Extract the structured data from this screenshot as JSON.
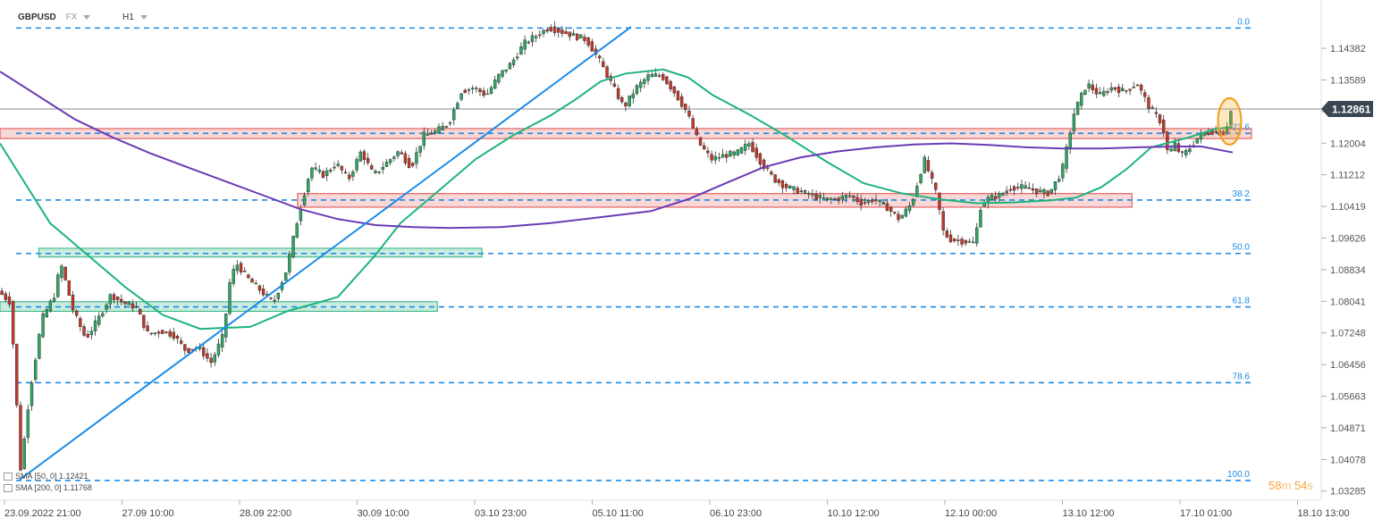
{
  "header": {
    "symbol": "GBPUSD",
    "market": "FX",
    "timeframe": "H1"
  },
  "countdown": {
    "minutes": "58",
    "m_unit": "m",
    "seconds": "54",
    "s_unit": "s"
  },
  "indicators": [
    {
      "label": "SMA [50, 0] 1.12421",
      "color": "#1db37c"
    },
    {
      "label": "SMA [200, 0] 1.11768",
      "color": "#6a3bb5"
    }
  ],
  "colors": {
    "up": "#2fa565",
    "down": "#c0392b",
    "fib": "#1a8ae6",
    "sma50": "#1db37c",
    "sma200": "#6a3bb5",
    "trendline": "#1a8ae6",
    "resistance": "#e04848",
    "support": "#2db37a",
    "price_tag": "#3a4653",
    "highlight": "#f39c12"
  },
  "chart_data": {
    "type": "candlestick",
    "symbol": "GBPUSD",
    "timeframe": "H1",
    "x_labels": [
      "23.09.2022  21:00",
      "27.09  10:00",
      "28.09  22:00",
      "30.09  10:00",
      "03.10  23:00",
      "05.10  11:00",
      "06.10  23:00",
      "10.10  12:00",
      "12.10  00:00",
      "13.10  12:00",
      "17.10  01:00",
      "18.10  13:00"
    ],
    "y_ticks": [
      "1.14382",
      "1.13589",
      "1.12796",
      "1.12004",
      "1.11212",
      "1.10419",
      "1.09626",
      "1.08834",
      "1.08041",
      "1.07248",
      "1.06456",
      "1.05663",
      "1.04871",
      "1.04078",
      "1.03285"
    ],
    "ylim": [
      1.031,
      1.151
    ],
    "current_price": "1.12861",
    "fibonacci": [
      {
        "label": "0.0",
        "price": 1.1489
      },
      {
        "label": "23.6",
        "price": 1.1225
      },
      {
        "label": "38.2",
        "price": 1.1058
      },
      {
        "label": "50.0",
        "price": 1.0924
      },
      {
        "label": "61.8",
        "price": 1.079
      },
      {
        "label": "78.6",
        "price": 1.06
      },
      {
        "label": "100.0",
        "price": 1.0355
      }
    ],
    "zones": [
      {
        "kind": "resistance",
        "x_from": 0,
        "x_to": 1,
        "price_low": 1.1212,
        "price_high": 1.1237
      },
      {
        "kind": "resistance",
        "x_from": 0.2378,
        "x_to": 0.9045,
        "price_low": 1.104,
        "price_high": 1.1074
      },
      {
        "kind": "support",
        "x_from": 0.031,
        "x_to": 0.3851,
        "price_low": 1.0915,
        "price_high": 1.0937
      },
      {
        "kind": "support",
        "x_from": 0,
        "x_to": 0.3495,
        "price_low": 1.0779,
        "price_high": 1.0803
      }
    ],
    "trendline": {
      "from": {
        "t": 0.0157,
        "price": 1.0357
      },
      "to": {
        "t": 0.5043,
        "price": 1.1492
      }
    },
    "series": [
      {
        "name": "SMA [50, 0] 1.12421",
        "points": [
          [
            0,
            1.12
          ],
          [
            0.04,
            1.1
          ],
          [
            0.07,
            1.092
          ],
          [
            0.1,
            1.084
          ],
          [
            0.13,
            1.077
          ],
          [
            0.16,
            1.0735
          ],
          [
            0.2,
            1.074
          ],
          [
            0.23,
            1.078
          ],
          [
            0.25,
            1.0797
          ],
          [
            0.27,
            1.0815
          ],
          [
            0.28,
            1.085
          ],
          [
            0.3,
            1.092
          ],
          [
            0.32,
            1.1
          ],
          [
            0.35,
            1.108
          ],
          [
            0.38,
            1.116
          ],
          [
            0.41,
            1.122
          ],
          [
            0.44,
            1.127
          ],
          [
            0.46,
            1.131
          ],
          [
            0.48,
            1.1355
          ],
          [
            0.5,
            1.1375
          ],
          [
            0.53,
            1.1385
          ],
          [
            0.55,
            1.1365
          ],
          [
            0.57,
            1.132
          ],
          [
            0.6,
            1.127
          ],
          [
            0.63,
            1.1215
          ],
          [
            0.66,
            1.1155
          ],
          [
            0.69,
            1.11
          ],
          [
            0.72,
            1.1075
          ],
          [
            0.75,
            1.106
          ],
          [
            0.78,
            1.105
          ],
          [
            0.81,
            1.1052
          ],
          [
            0.84,
            1.1057
          ],
          [
            0.86,
            1.1064
          ],
          [
            0.88,
            1.109
          ],
          [
            0.9,
            1.1135
          ],
          [
            0.92,
            1.119
          ],
          [
            0.95,
            1.1215
          ],
          [
            0.97,
            1.1235
          ],
          [
            0.985,
            1.1242
          ]
        ]
      },
      {
        "name": "SMA [200, 0] 1.11768",
        "points": [
          [
            0,
            1.138
          ],
          [
            0.03,
            1.132
          ],
          [
            0.06,
            1.126
          ],
          [
            0.09,
            1.1215
          ],
          [
            0.12,
            1.1175
          ],
          [
            0.15,
            1.114
          ],
          [
            0.18,
            1.1105
          ],
          [
            0.21,
            1.107
          ],
          [
            0.24,
            1.1035
          ],
          [
            0.27,
            1.101
          ],
          [
            0.3,
            1.0995
          ],
          [
            0.33,
            1.099
          ],
          [
            0.36,
            1.0988
          ],
          [
            0.4,
            1.099
          ],
          [
            0.44,
            1.1
          ],
          [
            0.48,
            1.1015
          ],
          [
            0.52,
            1.103
          ],
          [
            0.55,
            1.106
          ],
          [
            0.58,
            1.11
          ],
          [
            0.61,
            1.114
          ],
          [
            0.64,
            1.1165
          ],
          [
            0.67,
            1.118
          ],
          [
            0.7,
            1.119
          ],
          [
            0.73,
            1.1197
          ],
          [
            0.76,
            1.12
          ],
          [
            0.79,
            1.1196
          ],
          [
            0.82,
            1.119
          ],
          [
            0.85,
            1.1187
          ],
          [
            0.88,
            1.1187
          ],
          [
            0.91,
            1.119
          ],
          [
            0.94,
            1.1192
          ],
          [
            0.96,
            1.1192
          ],
          [
            0.985,
            1.1177
          ]
        ]
      }
    ],
    "candle_path": [
      [
        0,
        1.083
      ],
      [
        0.01,
        1.08
      ],
      [
        0.018,
        1.038
      ],
      [
        0.025,
        1.057
      ],
      [
        0.035,
        1.076
      ],
      [
        0.045,
        1.082
      ],
      [
        0.05,
        1.09
      ],
      [
        0.06,
        1.078
      ],
      [
        0.07,
        1.071
      ],
      [
        0.08,
        1.076
      ],
      [
        0.09,
        1.082
      ],
      [
        0.1,
        1.08
      ],
      [
        0.11,
        1.079
      ],
      [
        0.12,
        1.072
      ],
      [
        0.13,
        1.073
      ],
      [
        0.14,
        1.072
      ],
      [
        0.15,
        1.068
      ],
      [
        0.16,
        1.069
      ],
      [
        0.17,
        1.065
      ],
      [
        0.18,
        1.072
      ],
      [
        0.185,
        1.085
      ],
      [
        0.19,
        1.09
      ],
      [
        0.2,
        1.086
      ],
      [
        0.21,
        1.083
      ],
      [
        0.22,
        1.08
      ],
      [
        0.23,
        1.088
      ],
      [
        0.24,
        1.102
      ],
      [
        0.25,
        1.114
      ],
      [
        0.26,
        1.112
      ],
      [
        0.27,
        1.115
      ],
      [
        0.28,
        1.111
      ],
      [
        0.29,
        1.118
      ],
      [
        0.3,
        1.112
      ],
      [
        0.31,
        1.115
      ],
      [
        0.32,
        1.118
      ],
      [
        0.33,
        1.114
      ],
      [
        0.34,
        1.122
      ],
      [
        0.35,
        1.123
      ],
      [
        0.36,
        1.125
      ],
      [
        0.37,
        1.133
      ],
      [
        0.38,
        1.134
      ],
      [
        0.39,
        1.132
      ],
      [
        0.4,
        1.137
      ],
      [
        0.41,
        1.14
      ],
      [
        0.42,
        1.145
      ],
      [
        0.43,
        1.147
      ],
      [
        0.44,
        1.149
      ],
      [
        0.45,
        1.148
      ],
      [
        0.46,
        1.147
      ],
      [
        0.47,
        1.146
      ],
      [
        0.48,
        1.141
      ],
      [
        0.49,
        1.135
      ],
      [
        0.5,
        1.129
      ],
      [
        0.51,
        1.134
      ],
      [
        0.52,
        1.137
      ],
      [
        0.53,
        1.137
      ],
      [
        0.54,
        1.133
      ],
      [
        0.55,
        1.128
      ],
      [
        0.56,
        1.12
      ],
      [
        0.57,
        1.116
      ],
      [
        0.58,
        1.117
      ],
      [
        0.59,
        1.1175
      ],
      [
        0.6,
        1.12
      ],
      [
        0.61,
        1.115
      ],
      [
        0.62,
        1.111
      ],
      [
        0.63,
        1.109
      ],
      [
        0.64,
        1.108
      ],
      [
        0.65,
        1.107
      ],
      [
        0.66,
        1.106
      ],
      [
        0.67,
        1.106
      ],
      [
        0.68,
        1.107
      ],
      [
        0.69,
        1.105
      ],
      [
        0.7,
        1.106
      ],
      [
        0.71,
        1.104
      ],
      [
        0.72,
        1.101
      ],
      [
        0.73,
        1.105
      ],
      [
        0.74,
        1.116
      ],
      [
        0.75,
        1.107
      ],
      [
        0.755,
        1.098
      ],
      [
        0.76,
        1.096
      ],
      [
        0.77,
        1.0955
      ],
      [
        0.78,
        1.095
      ],
      [
        0.785,
        1.104
      ],
      [
        0.79,
        1.106
      ],
      [
        0.8,
        1.107
      ],
      [
        0.81,
        1.109
      ],
      [
        0.82,
        1.109
      ],
      [
        0.83,
        1.108
      ],
      [
        0.84,
        1.1075
      ],
      [
        0.85,
        1.113
      ],
      [
        0.86,
        1.128
      ],
      [
        0.87,
        1.135
      ],
      [
        0.88,
        1.132
      ],
      [
        0.89,
        1.134
      ],
      [
        0.9,
        1.133
      ],
      [
        0.91,
        1.135
      ],
      [
        0.92,
        1.129
      ],
      [
        0.93,
        1.125
      ],
      [
        0.935,
        1.117
      ],
      [
        0.94,
        1.12
      ],
      [
        0.945,
        1.117
      ],
      [
        0.95,
        1.118
      ],
      [
        0.96,
        1.122
      ],
      [
        0.97,
        1.123
      ],
      [
        0.98,
        1.1225
      ],
      [
        0.985,
        1.128
      ]
    ],
    "highlight": {
      "t": 0.9825,
      "price": 1.1255,
      "shape": "ellipse"
    }
  }
}
